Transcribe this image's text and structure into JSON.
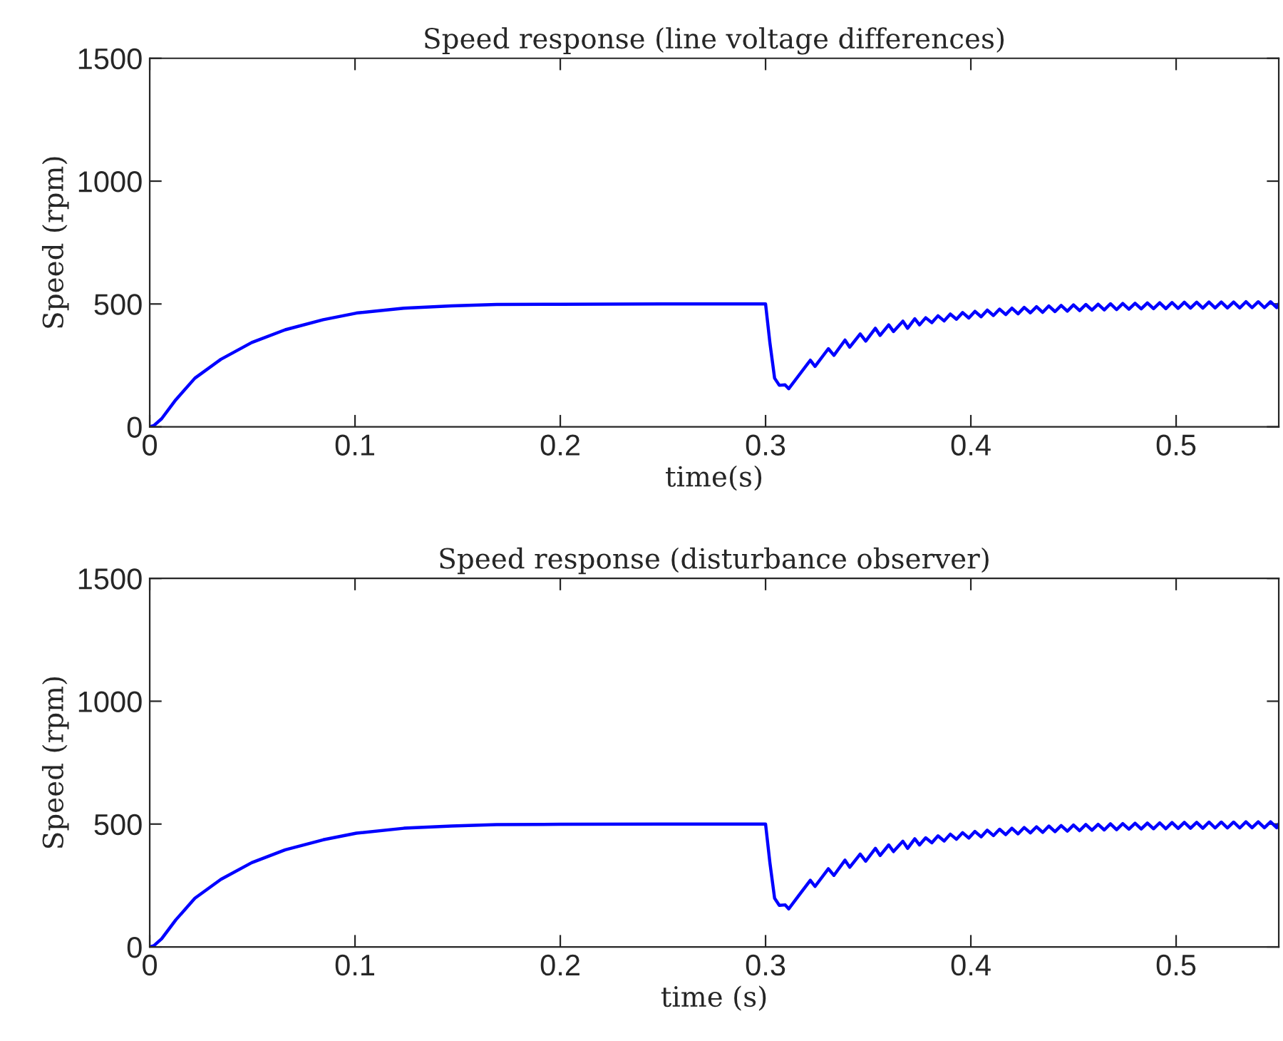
{
  "chart_data": [
    {
      "type": "line",
      "title": "Speed response (line voltage differences)",
      "xlabel": "time(s)",
      "ylabel": "Speed (rpm)",
      "xlim": [
        0,
        0.55
      ],
      "ylim": [
        0,
        1500
      ],
      "xticks": [
        0,
        0.1,
        0.2,
        0.3,
        0.4,
        0.5
      ],
      "yticks": [
        0,
        500,
        1000,
        1500
      ],
      "grid": false,
      "legend": false,
      "series": [
        {
          "color": "#0000ff",
          "x": [
            0,
            0.002,
            0.0058,
            0.0127,
            0.022,
            0.0347,
            0.0497,
            0.066,
            0.0845,
            0.1007,
            0.1238,
            0.147,
            0.169,
            0.2,
            0.25,
            0.3,
            0.3021,
            0.3044,
            0.3067,
            0.3095,
            0.3113,
            0.316,
            0.3218,
            0.3241,
            0.3306,
            0.3333,
            0.3387,
            0.341,
            0.3461,
            0.3488,
            0.3535,
            0.3558,
            0.36,
            0.3623,
            0.3669,
            0.3692,
            0.3727,
            0.375,
            0.378,
            0.381,
            0.384,
            0.387,
            0.39,
            0.393,
            0.396,
            0.399,
            0.402,
            0.405,
            0.408,
            0.411,
            0.414,
            0.417,
            0.42,
            0.423,
            0.426,
            0.429,
            0.432,
            0.435,
            0.438,
            0.441,
            0.444,
            0.447,
            0.45,
            0.453,
            0.456,
            0.459,
            0.462,
            0.465,
            0.468,
            0.471,
            0.474,
            0.477,
            0.48,
            0.483,
            0.486,
            0.489,
            0.492,
            0.495,
            0.498,
            0.501,
            0.504,
            0.507,
            0.51,
            0.513,
            0.516,
            0.519,
            0.522,
            0.525,
            0.528,
            0.531,
            0.534,
            0.537,
            0.54,
            0.543,
            0.546,
            0.549,
            0.55
          ],
          "values": [
            0,
            5,
            33,
            110,
            198,
            275,
            343,
            395,
            436,
            463,
            483,
            492,
            498,
            499,
            500,
            500,
            343,
            198,
            169,
            171,
            155,
            207,
            271,
            246,
            318,
            291,
            353,
            324,
            378,
            349,
            401,
            372,
            415,
            388,
            430,
            401,
            440,
            415,
            444,
            424,
            452,
            431,
            459,
            438,
            465,
            443,
            470,
            448,
            475,
            453,
            479,
            457,
            483,
            460,
            486,
            464,
            489,
            466,
            492,
            469,
            494,
            471,
            496,
            473,
            498,
            475,
            499,
            476,
            501,
            477,
            502,
            479,
            503,
            480,
            504,
            481,
            505,
            481,
            506,
            482,
            507,
            483,
            507,
            483,
            508,
            484,
            508,
            484,
            508,
            484,
            509,
            485,
            509,
            485,
            509,
            485,
            500
          ]
        }
      ]
    },
    {
      "type": "line",
      "title": "Speed response (disturbance observer)",
      "xlabel": "time (s)",
      "ylabel": "Speed (rpm)",
      "xlim": [
        0,
        0.55
      ],
      "ylim": [
        0,
        1500
      ],
      "xticks": [
        0,
        0.1,
        0.2,
        0.3,
        0.4,
        0.5
      ],
      "yticks": [
        0,
        500,
        1000,
        1500
      ],
      "grid": false,
      "legend": false,
      "series": [
        {
          "color": "#0000ff",
          "x": [
            0,
            0.002,
            0.0058,
            0.0127,
            0.022,
            0.0347,
            0.0497,
            0.066,
            0.0845,
            0.1007,
            0.1238,
            0.147,
            0.169,
            0.2,
            0.25,
            0.3,
            0.3021,
            0.3044,
            0.3067,
            0.3095,
            0.3113,
            0.316,
            0.3218,
            0.3241,
            0.3306,
            0.3333,
            0.3387,
            0.341,
            0.3461,
            0.3488,
            0.3535,
            0.3558,
            0.36,
            0.3623,
            0.3669,
            0.3692,
            0.3727,
            0.375,
            0.378,
            0.381,
            0.384,
            0.387,
            0.39,
            0.393,
            0.396,
            0.399,
            0.402,
            0.405,
            0.408,
            0.411,
            0.414,
            0.417,
            0.42,
            0.423,
            0.426,
            0.429,
            0.432,
            0.435,
            0.438,
            0.441,
            0.444,
            0.447,
            0.45,
            0.453,
            0.456,
            0.459,
            0.462,
            0.465,
            0.468,
            0.471,
            0.474,
            0.477,
            0.48,
            0.483,
            0.486,
            0.489,
            0.492,
            0.495,
            0.498,
            0.501,
            0.504,
            0.507,
            0.51,
            0.513,
            0.516,
            0.519,
            0.522,
            0.525,
            0.528,
            0.531,
            0.534,
            0.537,
            0.54,
            0.543,
            0.546,
            0.549,
            0.55
          ],
          "values": [
            0,
            5,
            33,
            110,
            198,
            275,
            343,
            395,
            436,
            463,
            483,
            492,
            498,
            499,
            500,
            500,
            343,
            198,
            169,
            171,
            155,
            207,
            271,
            246,
            318,
            291,
            353,
            324,
            378,
            349,
            401,
            372,
            415,
            388,
            430,
            401,
            440,
            415,
            444,
            424,
            452,
            431,
            459,
            438,
            465,
            443,
            470,
            448,
            475,
            453,
            479,
            457,
            483,
            460,
            486,
            464,
            489,
            466,
            492,
            469,
            494,
            471,
            496,
            473,
            498,
            475,
            499,
            476,
            501,
            477,
            502,
            479,
            503,
            480,
            504,
            481,
            505,
            481,
            506,
            482,
            507,
            483,
            507,
            483,
            508,
            484,
            508,
            484,
            508,
            484,
            509,
            485,
            509,
            485,
            509,
            485,
            500
          ]
        }
      ]
    }
  ]
}
